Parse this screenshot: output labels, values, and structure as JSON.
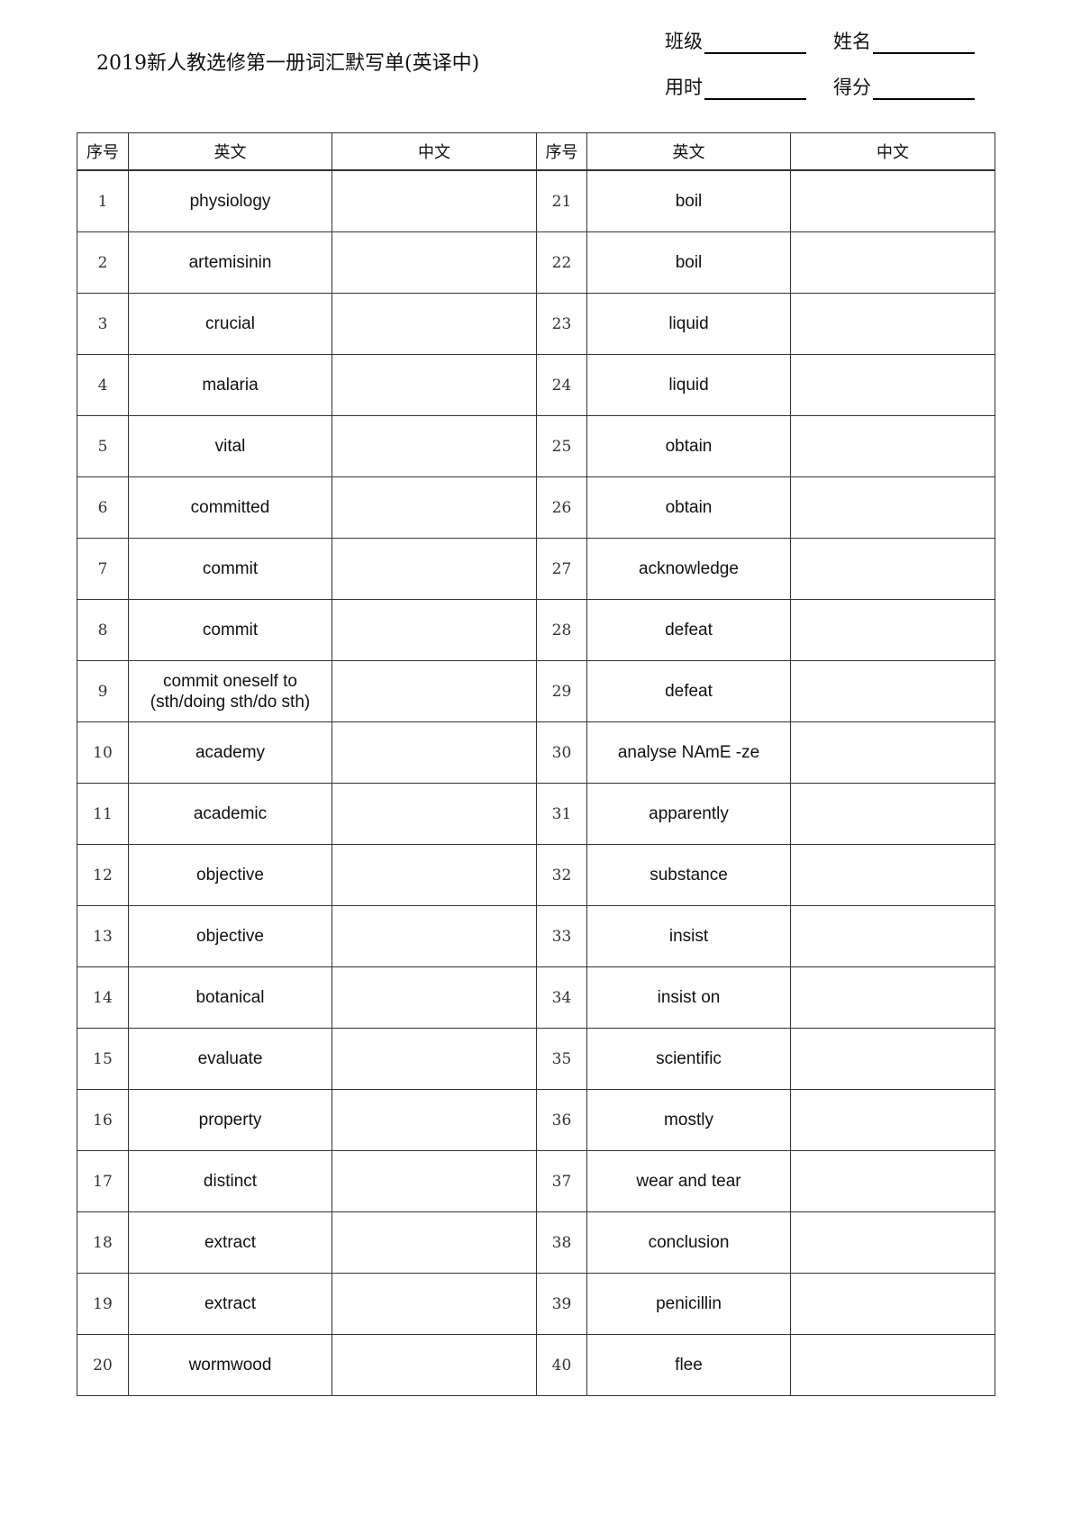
{
  "title": "2019新人教选修第一册词汇默写单(英译中)",
  "fields": {
    "class": "班级",
    "name": "姓名",
    "time": "用时",
    "score": "得分"
  },
  "headers": [
    "序号",
    "英文",
    "中文",
    "序号",
    "英文",
    "中文"
  ],
  "rows": [
    {
      "n1": "1",
      "e1": "physiology",
      "n2": "21",
      "e2": "boil"
    },
    {
      "n1": "2",
      "e1": "artemisinin",
      "n2": "22",
      "e2": "boil"
    },
    {
      "n1": "3",
      "e1": "crucial",
      "n2": "23",
      "e2": "liquid"
    },
    {
      "n1": "4",
      "e1": "malaria",
      "n2": "24",
      "e2": "liquid"
    },
    {
      "n1": "5",
      "e1": "vital",
      "n2": "25",
      "e2": "obtain"
    },
    {
      "n1": "6",
      "e1": "committed",
      "n2": "26",
      "e2": "obtain"
    },
    {
      "n1": "7",
      "e1": "commit",
      "n2": "27",
      "e2": "acknowledge"
    },
    {
      "n1": "8",
      "e1": "commit",
      "n2": "28",
      "e2": "defeat"
    },
    {
      "n1": "9",
      "e1": "commit oneself to (sth/doing sth/do sth)",
      "n2": "29",
      "e2": "defeat"
    },
    {
      "n1": "10",
      "e1": "academy",
      "n2": "30",
      "e2": "analyse  NAmE -ze"
    },
    {
      "n1": "11",
      "e1": "academic",
      "n2": "31",
      "e2": "apparently"
    },
    {
      "n1": "12",
      "e1": "objective",
      "n2": "32",
      "e2": "substance"
    },
    {
      "n1": "13",
      "e1": "objective",
      "n2": "33",
      "e2": "insist"
    },
    {
      "n1": "14",
      "e1": "botanical",
      "n2": "34",
      "e2": "insist on"
    },
    {
      "n1": "15",
      "e1": "evaluate",
      "n2": "35",
      "e2": "scientific"
    },
    {
      "n1": "16",
      "e1": "property",
      "n2": "36",
      "e2": "mostly"
    },
    {
      "n1": "17",
      "e1": "distinct",
      "n2": "37",
      "e2": "wear and tear"
    },
    {
      "n1": "18",
      "e1": "extract",
      "n2": "38",
      "e2": "conclusion"
    },
    {
      "n1": "19",
      "e1": "extract",
      "n2": "39",
      "e2": "penicillin"
    },
    {
      "n1": "20",
      "e1": "wormwood",
      "n2": "40",
      "e2": "flee"
    }
  ]
}
